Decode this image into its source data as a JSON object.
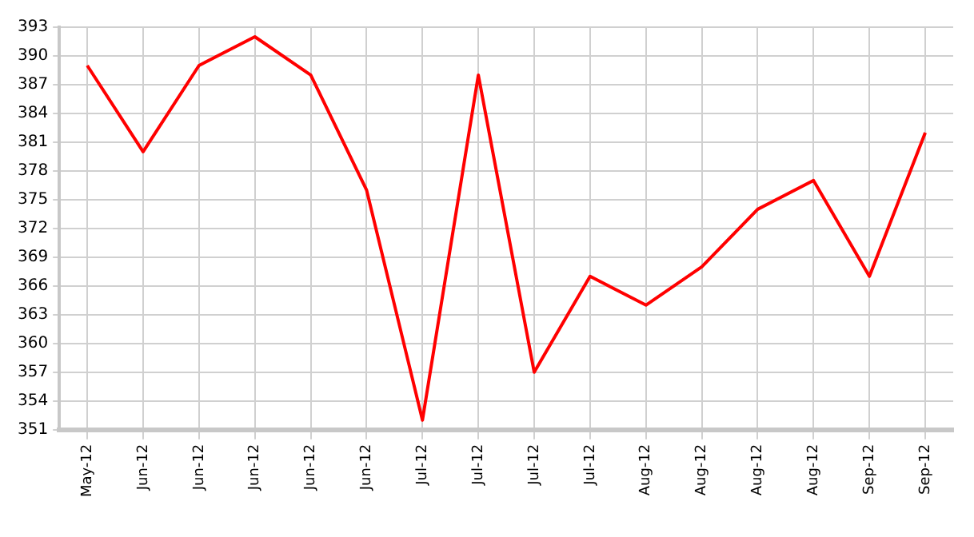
{
  "chart_data": {
    "type": "line",
    "categories": [
      "May-12",
      "Jun-12",
      "Jun-12",
      "Jun-12",
      "Jun-12",
      "Jun-12",
      "Jul-12",
      "Jul-12",
      "Jul-12",
      "Jul-12",
      "Aug-12",
      "Aug-12",
      "Aug-12",
      "Aug-12",
      "Sep-12",
      "Sep-12"
    ],
    "series": [
      {
        "color": "#ff0000",
        "values": [
          389,
          380,
          389,
          392,
          388,
          376,
          352,
          388,
          357,
          367,
          364,
          368,
          374,
          377,
          367,
          382
        ]
      }
    ],
    "ylim": [
      351,
      393
    ],
    "yticks": [
      351,
      354,
      357,
      360,
      363,
      366,
      369,
      372,
      375,
      378,
      381,
      384,
      387,
      390,
      393
    ],
    "grid": true,
    "marker": "none",
    "line_style": "solid"
  }
}
